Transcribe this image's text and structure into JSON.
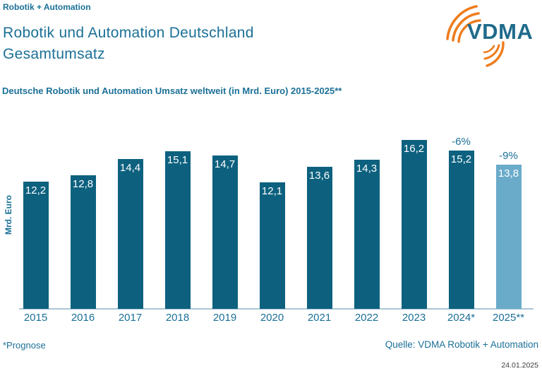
{
  "header": {
    "brand": "Robotik + Automation",
    "title_line1": "Robotik und Automation Deutschland",
    "title_line2": "Gesamtumsatz"
  },
  "logo": {
    "text": "VDMA",
    "text_color": "#1f6b8b",
    "arc_color": "#ee7d1e"
  },
  "footer": {
    "footnote": "*Prognose",
    "source": "Quelle: VDMA Robotik + Automation",
    "date": "24.01.2025"
  },
  "colors": {
    "bar_default": "#0d617f",
    "bar_forecast": "#6aabca",
    "text_teal": "#1b7097",
    "axis_line": "#a9c6d6",
    "value_label": "#ffffff"
  },
  "chart_data": {
    "type": "bar",
    "title": "Deutsche Robotik und Automation Umsatz weltweit (in Mrd. Euro) 2015-2025**",
    "xlabel": "",
    "ylabel": "Mrd. Euro",
    "ylim": [
      0,
      17
    ],
    "grid": false,
    "legend": false,
    "categories": [
      "2015",
      "2016",
      "2017",
      "2018",
      "2019",
      "2020",
      "2021",
      "2022",
      "2023",
      "2024*",
      "2025**"
    ],
    "values": [
      12.2,
      12.8,
      14.4,
      15.1,
      14.7,
      12.1,
      13.6,
      14.3,
      16.2,
      15.2,
      13.8
    ],
    "bars": [
      {
        "year": "2015",
        "value": 12.2,
        "label": "12,2",
        "percent": null,
        "forecast": false
      },
      {
        "year": "2016",
        "value": 12.8,
        "label": "12,8",
        "percent": null,
        "forecast": false
      },
      {
        "year": "2017",
        "value": 14.4,
        "label": "14,4",
        "percent": null,
        "forecast": false
      },
      {
        "year": "2018",
        "value": 15.1,
        "label": "15,1",
        "percent": null,
        "forecast": false
      },
      {
        "year": "2019",
        "value": 14.7,
        "label": "14,7",
        "percent": null,
        "forecast": false
      },
      {
        "year": "2020",
        "value": 12.1,
        "label": "12,1",
        "percent": null,
        "forecast": false
      },
      {
        "year": "2021",
        "value": 13.6,
        "label": "13,6",
        "percent": null,
        "forecast": false
      },
      {
        "year": "2022",
        "value": 14.3,
        "label": "14,3",
        "percent": null,
        "forecast": false
      },
      {
        "year": "2023",
        "value": 16.2,
        "label": "16,2",
        "percent": null,
        "forecast": false
      },
      {
        "year": "2024*",
        "value": 15.2,
        "label": "15,2",
        "percent": "-6%",
        "forecast": false
      },
      {
        "year": "2025**",
        "value": 13.8,
        "label": "13,8",
        "percent": "-9%",
        "forecast": true
      }
    ]
  }
}
